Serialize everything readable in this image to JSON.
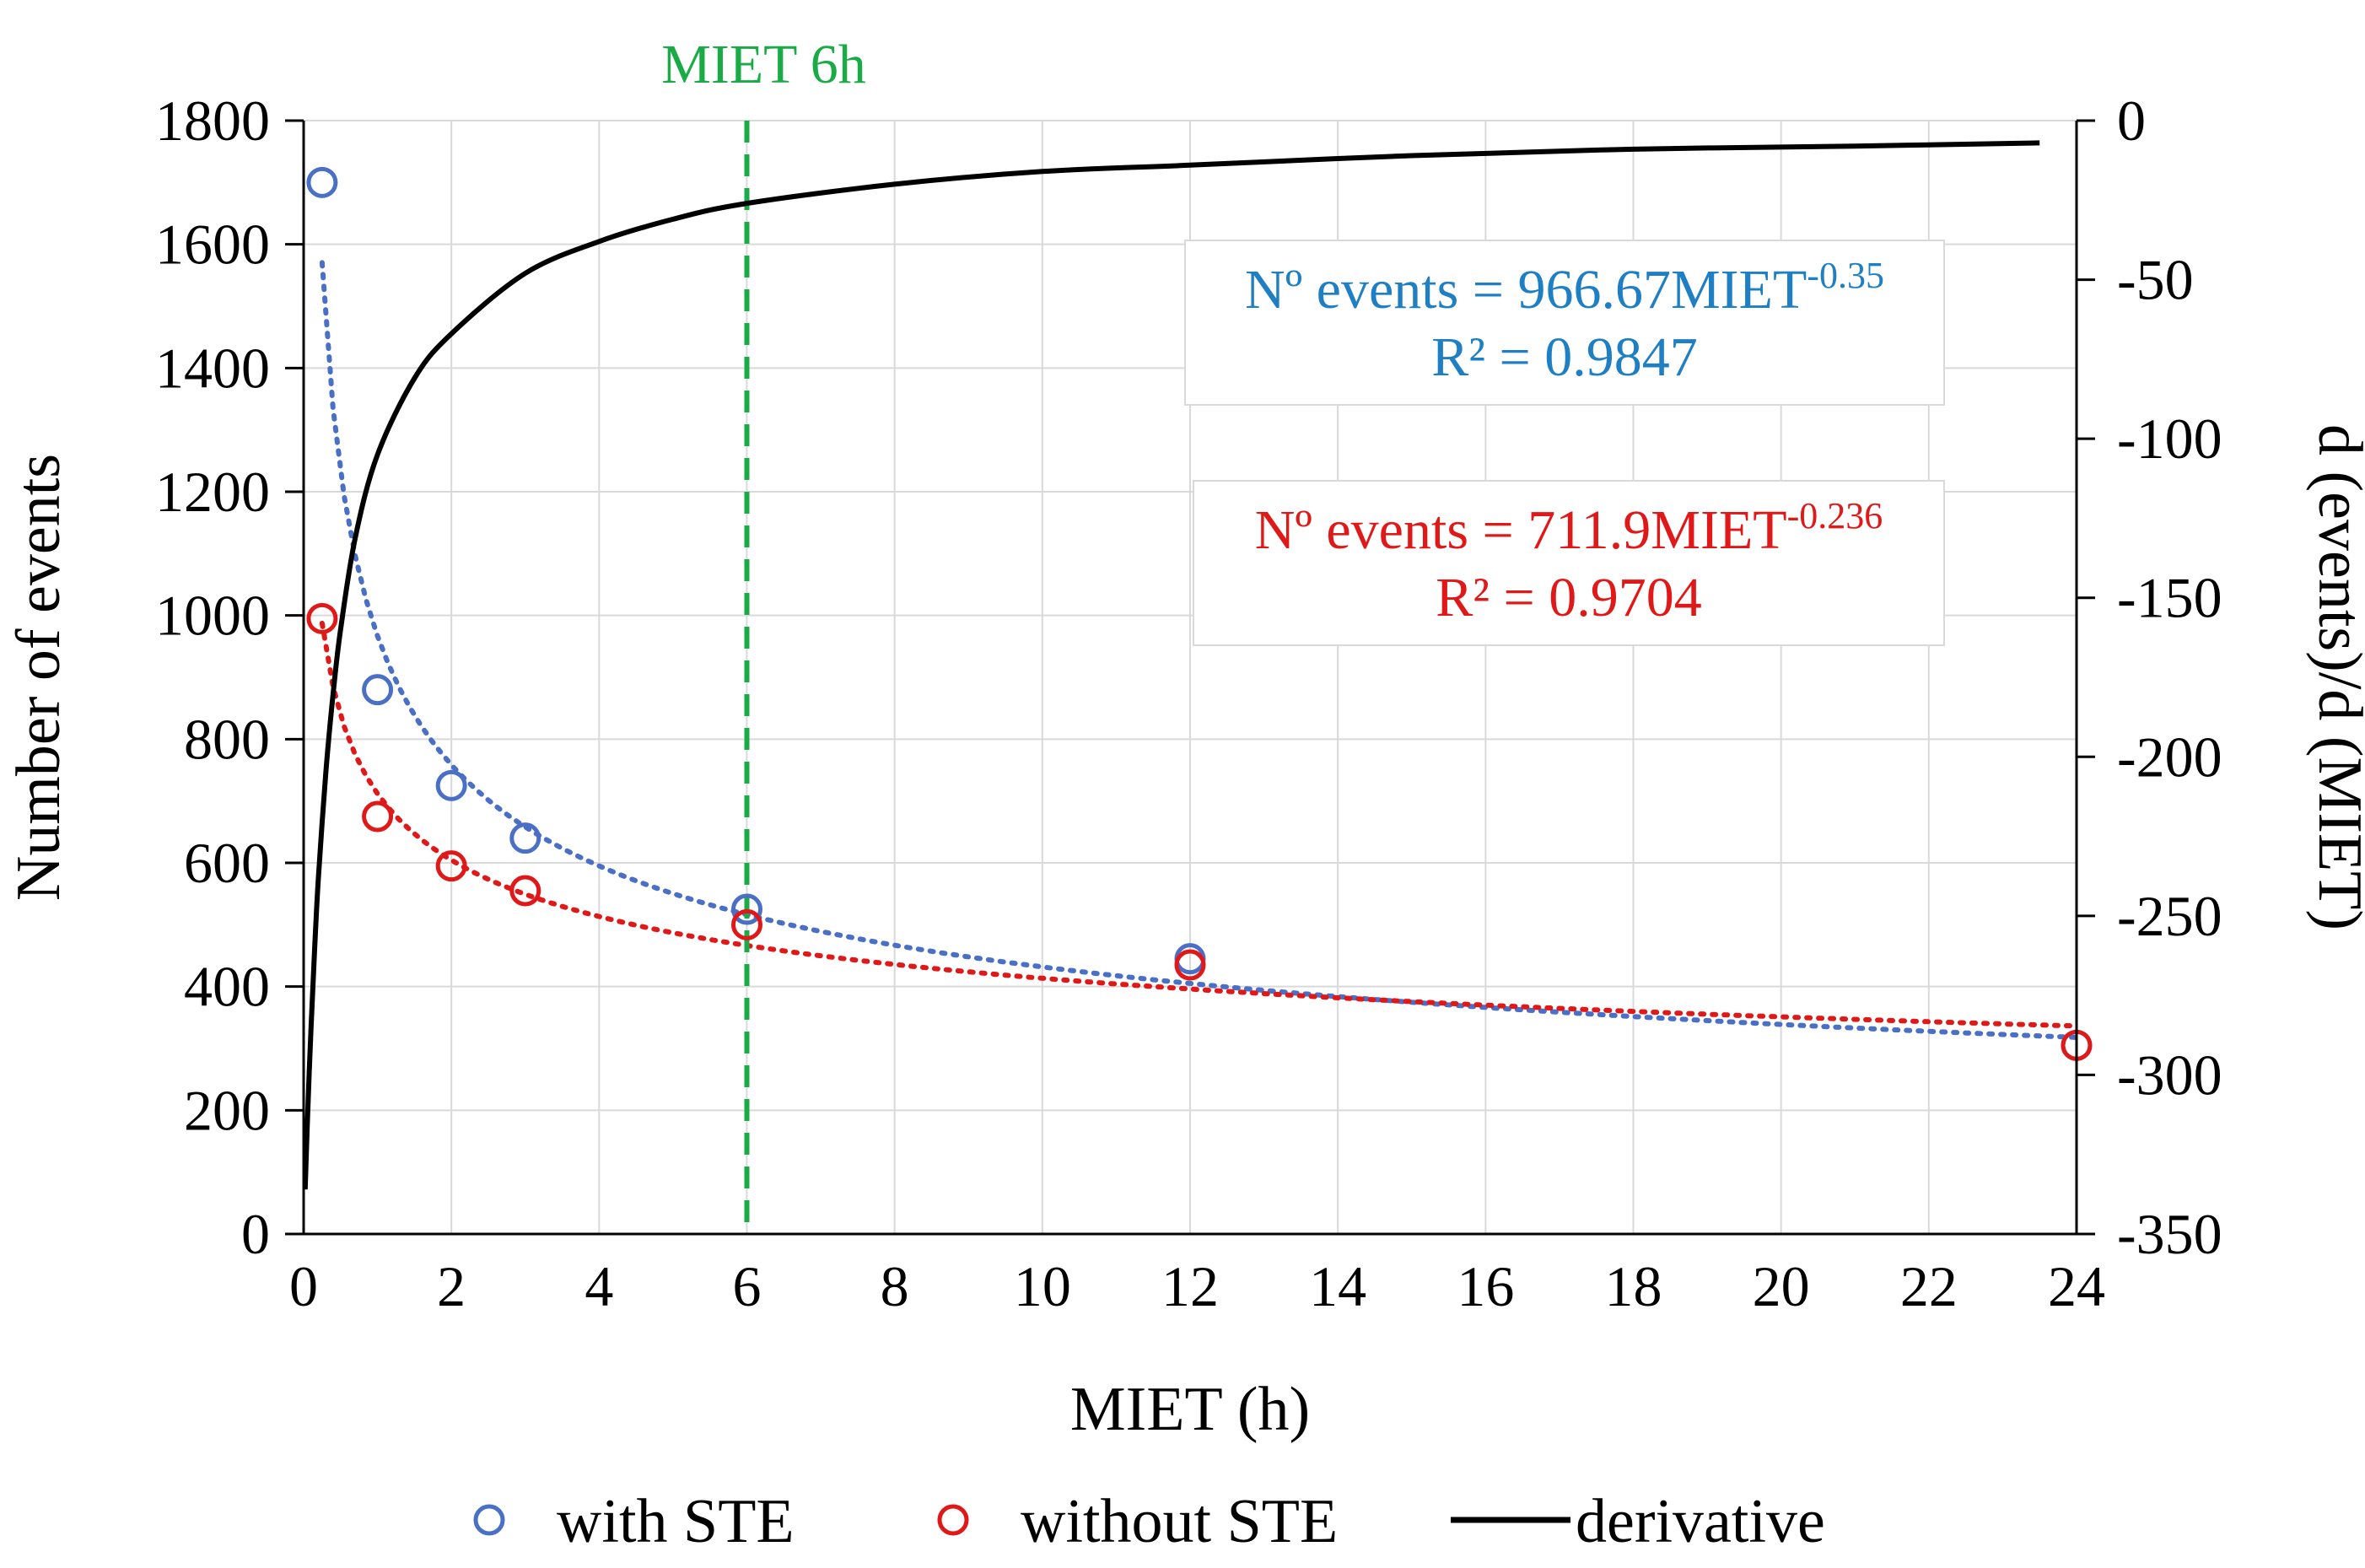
{
  "chart_data": {
    "type": "scatter",
    "title": "",
    "xlabel": "MIET (h)",
    "ylabel": "Number of events",
    "y2label": "d (events)/d (MIET)",
    "xlim": [
      0,
      24
    ],
    "ylim": [
      0,
      1800
    ],
    "y2lim": [
      -350,
      0
    ],
    "x_ticks": [
      "0",
      "2",
      "4",
      "6",
      "8",
      "10",
      "12",
      "14",
      "16",
      "18",
      "20",
      "22",
      "24"
    ],
    "y_ticks": [
      "0",
      "200",
      "400",
      "600",
      "800",
      "1000",
      "1200",
      "1400",
      "1600",
      "1800"
    ],
    "y2_ticks": [
      "-350",
      "-300",
      "-250",
      "-200",
      "-150",
      "-100",
      "-50",
      "0"
    ],
    "grid": true,
    "legend_position": "bottom",
    "series": [
      {
        "name": "with STE",
        "kind": "markers",
        "marker": "open-circle",
        "color": "#4a6fc7",
        "axis": "left",
        "x": [
          0.25,
          1,
          2,
          3,
          6,
          12,
          24
        ],
        "y": [
          1700,
          880,
          725,
          640,
          525,
          445,
          305
        ]
      },
      {
        "name": "without STE",
        "kind": "markers",
        "marker": "open-circle",
        "color": "#e01818",
        "axis": "left",
        "x": [
          0.25,
          1,
          2,
          3,
          6,
          12,
          24
        ],
        "y": [
          995,
          675,
          595,
          555,
          500,
          435,
          305
        ]
      },
      {
        "name": "derivative",
        "kind": "line",
        "color": "#000000",
        "axis": "right",
        "x": [
          0.02,
          0.05,
          0.1,
          0.15,
          0.2,
          0.3,
          0.4,
          0.5,
          0.7,
          1,
          1.5,
          2,
          3,
          4,
          5,
          6,
          8,
          10,
          12,
          15,
          18,
          21,
          23.5
        ],
        "y": [
          -336,
          -315,
          -285,
          -260,
          -238,
          -205,
          -180,
          -160,
          -131,
          -105,
          -81,
          -67,
          -48,
          -38,
          -31,
          -26,
          -20,
          -16,
          -14,
          -11,
          -9,
          -8,
          -7
        ]
      }
    ],
    "trendlines": [
      {
        "series": "with STE",
        "type": "power",
        "a": 966.67,
        "b": -0.35,
        "x_range": [
          0.25,
          24
        ],
        "style": "dotted",
        "color": "#4a6fc7",
        "equation_main": "Nº events = 966.67MIET",
        "equation_exp": "-0.35",
        "r2": "R² = 0.9847",
        "text_color": "#1f7fc4"
      },
      {
        "series": "without STE",
        "type": "power",
        "a": 711.9,
        "b": -0.236,
        "x_range": [
          0.25,
          24
        ],
        "style": "dotted",
        "color": "#e01818",
        "equation_main": "Nº events = 711.9MIET",
        "equation_exp": "-0.236",
        "r2": "R² = 0.9704",
        "text_color": "#e01818"
      }
    ],
    "annotations": [
      {
        "text": "MIET 6h",
        "x": 6,
        "style": "vertical-dashed-line",
        "color": "#1aab47"
      }
    ]
  }
}
